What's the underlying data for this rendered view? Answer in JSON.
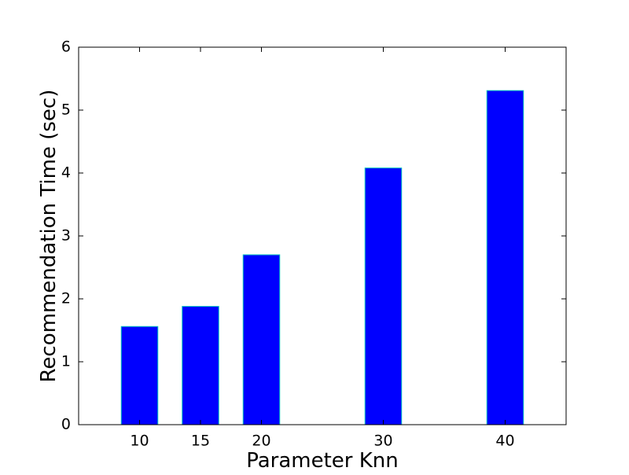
{
  "chart_data": {
    "type": "bar",
    "title": "",
    "xlabel": "Parameter Knn",
    "ylabel": "Recommendation Time (sec)",
    "x": [
      10,
      15,
      20,
      30,
      40
    ],
    "values": [
      1.56,
      1.88,
      2.7,
      4.08,
      5.31
    ],
    "x_tick_labels": [
      "10",
      "15",
      "20",
      "30",
      "40"
    ],
    "y_ticks": [
      0,
      1,
      2,
      3,
      4,
      5,
      6
    ],
    "y_tick_labels": [
      "0",
      "1",
      "2",
      "3",
      "4",
      "5",
      "6"
    ],
    "xlim": [
      5,
      45
    ],
    "ylim": [
      0,
      6
    ],
    "bar_width": 3,
    "grid": false,
    "legend": "none",
    "colors": {
      "bar_fill": "#0000ff",
      "bar_edge": "#00bfbf",
      "axes": "#000000",
      "background": "#ffffff"
    }
  }
}
